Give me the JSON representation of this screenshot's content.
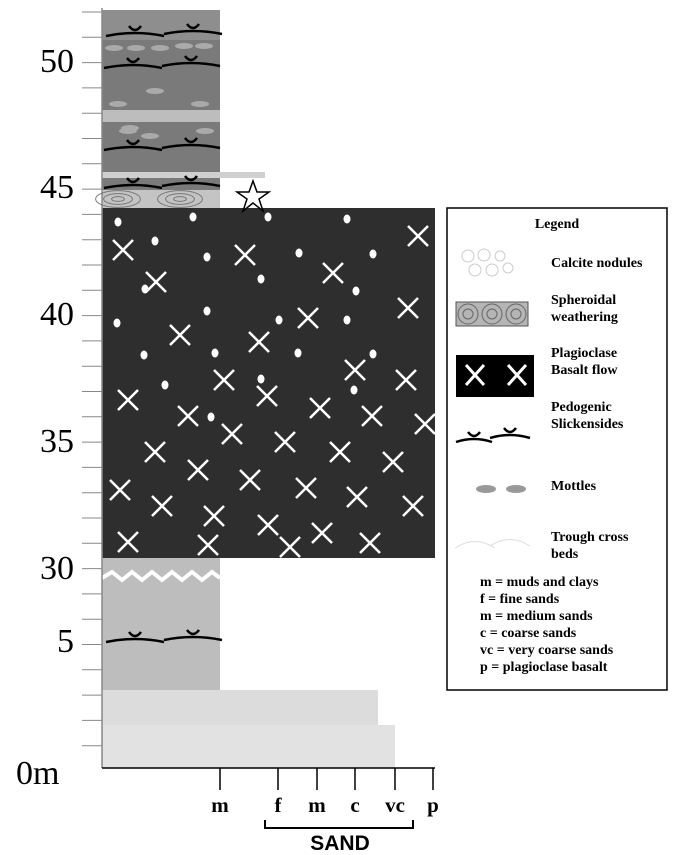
{
  "depth_labels": [
    "50",
    "45",
    "40",
    "35",
    "30",
    "5",
    "0m"
  ],
  "grain_size_labels": [
    "m",
    "f",
    "m",
    "c",
    "vc",
    "p"
  ],
  "sand_label": "SAND",
  "legend": {
    "title": "Legend",
    "items": [
      [
        "Calcite nodules"
      ],
      [
        "Spheroidal",
        "weathering"
      ],
      [
        "Plagioclase",
        "Basalt flow"
      ],
      [
        "Pedogenic",
        "Slickensides"
      ],
      [
        "Mottles"
      ],
      [
        "Trough cross",
        "beds"
      ]
    ]
  },
  "abbreviations": [
    "m = muds and clays",
    "f  = fine sands",
    "m = medium sands",
    "c  = coarse sands",
    "vc = very coarse sands",
    "p  = plagioclase basalt"
  ]
}
